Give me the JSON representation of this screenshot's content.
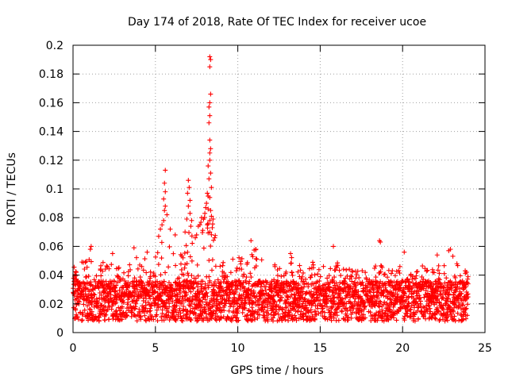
{
  "chart_data": {
    "type": "scatter",
    "title": "Day 174 of 2018, Rate Of TEC Index for receiver ucoe",
    "xlabel": "GPS time / hours",
    "ylabel": "ROTI / TECUs",
    "xlim": [
      0,
      25
    ],
    "ylim": [
      0,
      0.2
    ],
    "x_ticks": [
      "0",
      "5",
      "10",
      "15",
      "20",
      "25"
    ],
    "y_ticks": [
      "0",
      "0.02",
      "0.04",
      "0.06",
      "0.08",
      "0.1",
      "0.12",
      "0.14",
      "0.16",
      "0.18",
      "0.2"
    ],
    "grid": true,
    "marker": "+",
    "color": "#ff0000",
    "series": [
      {
        "name": "ROTI",
        "envelope_hours": [
          0,
          0.5,
          1,
          1.5,
          2,
          2.5,
          3,
          3.5,
          4,
          4.5,
          5,
          5.5,
          6,
          6.5,
          7,
          7.5,
          8,
          8.5,
          9,
          9.5,
          10,
          10.5,
          11,
          11.5,
          12,
          12.5,
          13,
          13.5,
          14,
          14.5,
          15,
          15.5,
          16,
          16.5,
          17,
          17.5,
          18,
          18.5,
          19,
          19.5,
          20,
          20.5,
          21,
          21.5,
          22,
          22.5,
          23,
          23.5,
          24
        ],
        "envelope_max": [
          0.045,
          0.05,
          0.058,
          0.052,
          0.048,
          0.05,
          0.052,
          0.047,
          0.055,
          0.05,
          0.056,
          0.07,
          0.06,
          0.055,
          0.07,
          0.068,
          0.085,
          0.075,
          0.05,
          0.052,
          0.055,
          0.05,
          0.062,
          0.05,
          0.048,
          0.05,
          0.055,
          0.05,
          0.045,
          0.05,
          0.048,
          0.045,
          0.05,
          0.045,
          0.044,
          0.046,
          0.044,
          0.048,
          0.046,
          0.044,
          0.048,
          0.045,
          0.05,
          0.046,
          0.05,
          0.052,
          0.057,
          0.045,
          0.042
        ],
        "points": [
          [
            5.6,
            0.113
          ],
          [
            5.55,
            0.104
          ],
          [
            5.6,
            0.098
          ],
          [
            5.5,
            0.093
          ],
          [
            5.6,
            0.088
          ],
          [
            5.55,
            0.085
          ],
          [
            5.7,
            0.082
          ],
          [
            5.5,
            0.078
          ],
          [
            5.4,
            0.075
          ],
          [
            5.3,
            0.072
          ],
          [
            5.9,
            0.072
          ],
          [
            6.2,
            0.068
          ],
          [
            5.2,
            0.067
          ],
          [
            7.0,
            0.106
          ],
          [
            7.05,
            0.101
          ],
          [
            6.95,
            0.097
          ],
          [
            7.1,
            0.092
          ],
          [
            7.0,
            0.088
          ],
          [
            7.1,
            0.083
          ],
          [
            6.9,
            0.079
          ],
          [
            7.2,
            0.078
          ],
          [
            7.15,
            0.074
          ],
          [
            6.8,
            0.07
          ],
          [
            7.6,
            0.074
          ],
          [
            7.7,
            0.075
          ],
          [
            7.5,
            0.068
          ],
          [
            7.8,
            0.08
          ],
          [
            8.3,
            0.192
          ],
          [
            8.35,
            0.19
          ],
          [
            8.3,
            0.185
          ],
          [
            8.35,
            0.166
          ],
          [
            8.3,
            0.16
          ],
          [
            8.25,
            0.157
          ],
          [
            8.3,
            0.151
          ],
          [
            8.25,
            0.146
          ],
          [
            8.3,
            0.134
          ],
          [
            8.35,
            0.128
          ],
          [
            8.3,
            0.125
          ],
          [
            8.3,
            0.12
          ],
          [
            8.2,
            0.116
          ],
          [
            8.35,
            0.111
          ],
          [
            8.25,
            0.107
          ],
          [
            8.4,
            0.101
          ],
          [
            8.15,
            0.097
          ],
          [
            8.2,
            0.095
          ],
          [
            8.3,
            0.094
          ],
          [
            8.1,
            0.09
          ],
          [
            8.05,
            0.087
          ],
          [
            8.2,
            0.086
          ],
          [
            8.35,
            0.085
          ],
          [
            8.0,
            0.083
          ],
          [
            8.4,
            0.081
          ],
          [
            8.5,
            0.079
          ],
          [
            8.3,
            0.078
          ],
          [
            8.15,
            0.075
          ],
          [
            8.45,
            0.073
          ],
          [
            8.3,
            0.07
          ],
          [
            8.6,
            0.066
          ],
          [
            1.1,
            0.06
          ],
          [
            1.05,
            0.058
          ],
          [
            2.4,
            0.055
          ],
          [
            3.7,
            0.059
          ],
          [
            4.5,
            0.056
          ],
          [
            10.8,
            0.064
          ],
          [
            11.1,
            0.058
          ],
          [
            13.2,
            0.055
          ],
          [
            15.8,
            0.06
          ],
          [
            18.6,
            0.064
          ],
          [
            18.65,
            0.063
          ],
          [
            20.1,
            0.056
          ],
          [
            22.1,
            0.054
          ],
          [
            22.8,
            0.057
          ],
          [
            22.9,
            0.058
          ],
          [
            23.8,
            0.043
          ]
        ]
      }
    ]
  }
}
